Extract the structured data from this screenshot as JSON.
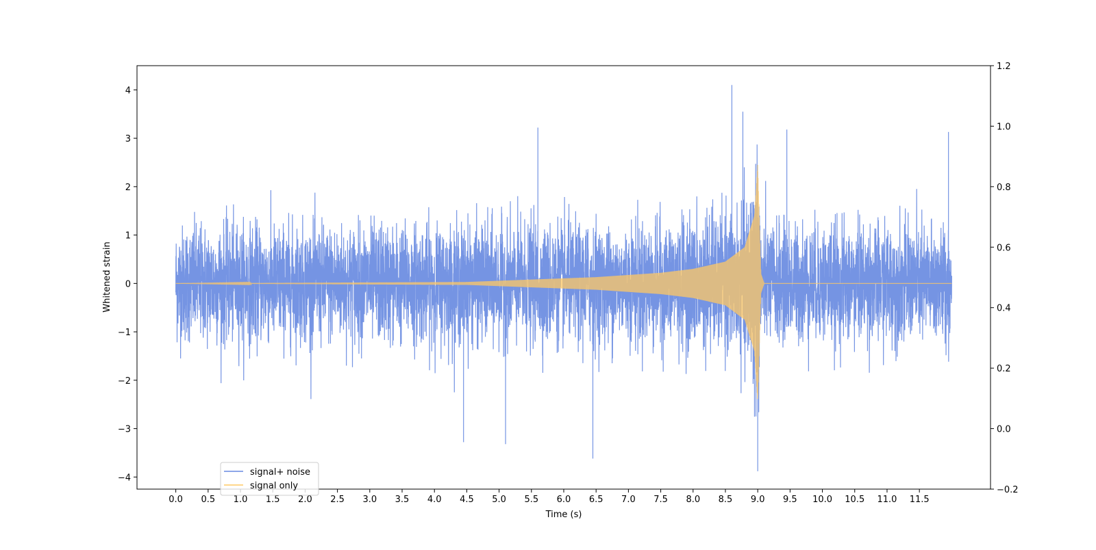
{
  "chart_data": {
    "type": "line",
    "xlabel": "Time (s)",
    "ylabel": "Whitened strain",
    "xlim": [
      -0.6,
      12.6
    ],
    "ylim": [
      -4.25,
      4.5
    ],
    "y2lim": [
      -0.2,
      1.2
    ],
    "x_ticks": [
      0.0,
      0.5,
      1.0,
      1.5,
      2.0,
      2.5,
      3.0,
      3.5,
      4.0,
      4.5,
      5.0,
      5.5,
      6.0,
      6.5,
      7.0,
      7.5,
      8.0,
      8.5,
      9.0,
      9.5,
      10.0,
      10.5,
      11.0,
      11.5
    ],
    "x_tick_labels": [
      "0.0",
      "0.5",
      "1.0",
      "1.5",
      "2.0",
      "2.5",
      "3.0",
      "3.5",
      "4.0",
      "4.5",
      "5.0",
      "5.5",
      "6.0",
      "6.5",
      "7.0",
      "7.5",
      "8.0",
      "8.5",
      "9.0",
      "9.5",
      "10.0",
      "10.5",
      "11.0",
      "11.5"
    ],
    "y_ticks": [
      -4,
      -3,
      -2,
      -1,
      0,
      1,
      2,
      3,
      4
    ],
    "y_tick_labels": [
      "−4",
      "−3",
      "−2",
      "−1",
      "0",
      "1",
      "2",
      "3",
      "4"
    ],
    "y2_ticks": [
      -0.2,
      0.0,
      0.2,
      0.4,
      0.6,
      0.8,
      1.0,
      1.2
    ],
    "y2_tick_labels": [
      "−0.2",
      "0.0",
      "0.2",
      "0.4",
      "0.6",
      "0.8",
      "1.0",
      "1.2"
    ],
    "grid": false,
    "legend_position": "lower-left",
    "series": [
      {
        "name": "signal+ noise",
        "color": "#6688e0",
        "x_range": [
          0.0,
          12.0
        ],
        "typical_amplitude": 1.3,
        "max": 4.1,
        "min": -3.88,
        "peaks": [
          {
            "x": 8.6,
            "y": 4.1
          },
          {
            "x": 8.77,
            "y": 3.55
          },
          {
            "x": 5.6,
            "y": 3.22
          },
          {
            "x": 9.45,
            "y": 3.18
          },
          {
            "x": 11.95,
            "y": 3.13
          },
          {
            "x": 9.0,
            "y": -3.88
          },
          {
            "x": 6.45,
            "y": -3.62
          },
          {
            "x": 5.1,
            "y": -3.32
          },
          {
            "x": 4.45,
            "y": -3.28
          }
        ]
      },
      {
        "name": "signal only",
        "color": "#ffc864",
        "x_range": [
          0.0,
          12.0
        ],
        "merger_time": 9.0,
        "peak_amplitude": 2.45,
        "envelope": [
          [
            0.0,
            0.0
          ],
          [
            4.5,
            0.03
          ],
          [
            5.5,
            0.08
          ],
          [
            6.5,
            0.13
          ],
          [
            7.5,
            0.22
          ],
          [
            8.0,
            0.3
          ],
          [
            8.5,
            0.45
          ],
          [
            8.8,
            0.75
          ],
          [
            8.95,
            1.4
          ],
          [
            9.0,
            2.45
          ],
          [
            9.05,
            0.2
          ],
          [
            9.1,
            0.0
          ],
          [
            12.0,
            0.0
          ]
        ]
      }
    ]
  }
}
